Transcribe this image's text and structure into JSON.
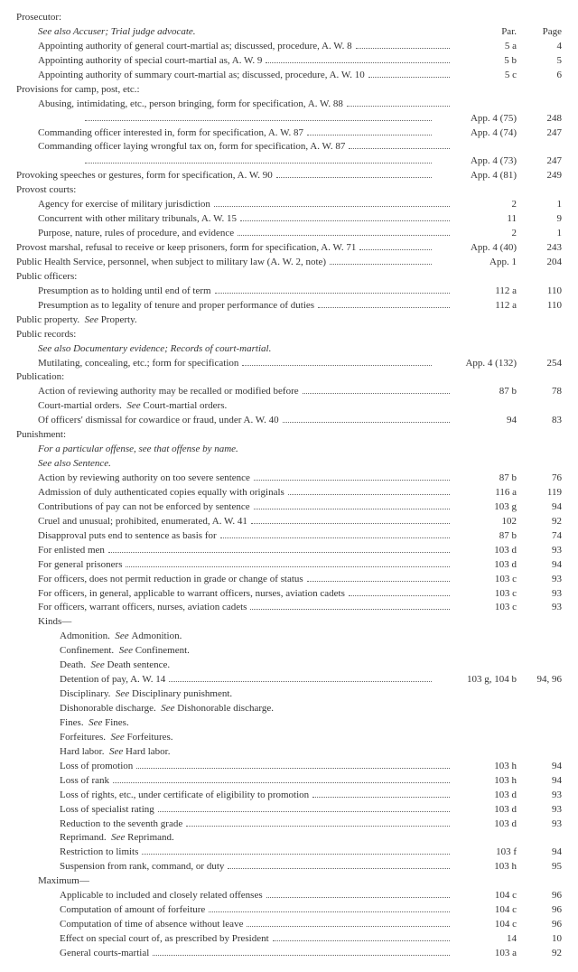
{
  "headers": {
    "par": "Par.",
    "page": "Page"
  },
  "entries": [
    {
      "lvl": 0,
      "text": "Prosecutor:",
      "par": "",
      "page": "",
      "dots": false
    },
    {
      "lvl": 1,
      "text": "See also Accuser; Trial judge advocate.",
      "par": "",
      "page": "",
      "dots": false,
      "italic": true,
      "showHeaders": true
    },
    {
      "lvl": 1,
      "text": "Appointing authority of general court-martial as; discussed, procedure, A. W. 8",
      "par": "5 a",
      "page": "4",
      "dots": true
    },
    {
      "lvl": 1,
      "text": "Appointing authority of special court-martial as, A. W. 9",
      "par": "5 b",
      "page": "5",
      "dots": true
    },
    {
      "lvl": 1,
      "text": "Appointing authority of summary court-martial as; discussed, procedure, A. W. 10",
      "par": "5 c",
      "page": "6",
      "dots": true
    },
    {
      "lvl": 0,
      "text": "Provisions for camp, post, etc.:",
      "par": "",
      "page": "",
      "dots": false
    },
    {
      "lvl": 1,
      "text": "Abusing, intimidating, etc., person bringing, form for specification, A. W. 88",
      "par": "",
      "page": "",
      "dots": true
    },
    {
      "lvl": 3,
      "text": "",
      "prefix": "",
      "par": "App. 4 (75)",
      "page": "248",
      "dots": true,
      "parWide": true
    },
    {
      "lvl": 1,
      "text": "Commanding officer interested in, form for specification, A. W. 87",
      "par": "App. 4 (74)",
      "page": "247",
      "dots": true,
      "parWide": true
    },
    {
      "lvl": 1,
      "text": "Commanding officer laying wrongful tax on, form for specification, A. W. 87",
      "par": "",
      "page": "",
      "dots": true
    },
    {
      "lvl": 3,
      "text": "",
      "par": "App. 4 (73)",
      "page": "247",
      "dots": true,
      "parWide": true
    },
    {
      "lvl": 0,
      "text": "Provoking speeches or gestures, form for specification, A. W. 90",
      "par": "App. 4 (81)",
      "page": "249",
      "dots": true,
      "parWide": true
    },
    {
      "lvl": 0,
      "text": "Provost courts:",
      "par": "",
      "page": "",
      "dots": false
    },
    {
      "lvl": 1,
      "text": "Agency for exercise of military jurisdiction",
      "par": "2",
      "page": "1",
      "dots": true
    },
    {
      "lvl": 1,
      "text": "Concurrent with other military tribunals, A. W. 15",
      "par": "11",
      "page": "9",
      "dots": true
    },
    {
      "lvl": 1,
      "text": "Purpose, nature, rules of procedure, and evidence",
      "par": "2",
      "page": "1",
      "dots": true
    },
    {
      "lvl": 0,
      "text": "Provost marshal, refusal to receive or keep prisoners, form for specification, A. W. 71",
      "par": "App. 4 (40)",
      "page": "243",
      "dots": true,
      "parWide": true,
      "wrap": true
    },
    {
      "lvl": 0,
      "text": "Public Health Service, personnel, when subject to military law (A. W. 2, note)",
      "par": "App. 1",
      "page": "204",
      "dots": true,
      "parWide": true
    },
    {
      "lvl": 0,
      "text": "Public officers:",
      "par": "",
      "page": "",
      "dots": false
    },
    {
      "lvl": 1,
      "text": "Presumption as to holding until end of term",
      "par": "112 a",
      "page": "110",
      "dots": true
    },
    {
      "lvl": 1,
      "text": "Presumption as to legality of tenure and proper performance of duties",
      "par": "112 a",
      "page": "110",
      "dots": true
    },
    {
      "lvl": 0,
      "text": "Public property.  See Property.",
      "par": "",
      "page": "",
      "dots": false,
      "mixedItalic": "see"
    },
    {
      "lvl": 0,
      "text": "Public records:",
      "par": "",
      "page": "",
      "dots": false
    },
    {
      "lvl": 1,
      "text": "See also Documentary evidence; Records of court-martial.",
      "par": "",
      "page": "",
      "dots": false,
      "italic": true
    },
    {
      "lvl": 1,
      "text": "Mutilating, concealing, etc.; form for specification",
      "par": "App. 4 (132)",
      "page": "254",
      "dots": true,
      "parWide": true
    },
    {
      "lvl": 0,
      "text": "Publication:",
      "par": "",
      "page": "",
      "dots": false
    },
    {
      "lvl": 1,
      "text": "Action of reviewing authority may be recalled or modified before",
      "par": "87 b",
      "page": "78",
      "dots": true
    },
    {
      "lvl": 1,
      "text": "Court-martial orders.  See Court-martial orders.",
      "par": "",
      "page": "",
      "dots": false,
      "mixedItalic": "see"
    },
    {
      "lvl": 1,
      "text": "Of officers' dismissal for cowardice or fraud, under A. W. 40",
      "par": "94",
      "page": "83",
      "dots": true
    },
    {
      "lvl": 0,
      "text": "Punishment:",
      "par": "",
      "page": "",
      "dots": false
    },
    {
      "lvl": 1,
      "text": "For a particular offense, see that offense by name.",
      "par": "",
      "page": "",
      "dots": false,
      "italic": true
    },
    {
      "lvl": 1,
      "text": "See also Sentence.",
      "par": "",
      "page": "",
      "dots": false,
      "italic": true
    },
    {
      "lvl": 1,
      "text": "Action by reviewing authority on too severe sentence",
      "par": "87 b",
      "page": "76",
      "dots": true
    },
    {
      "lvl": 1,
      "text": "Admission of duly authenticated copies equally with originals",
      "par": "116 a",
      "page": "119",
      "dots": true
    },
    {
      "lvl": 1,
      "text": "Contributions of pay can not be enforced by sentence",
      "par": "103 g",
      "page": "94",
      "dots": true
    },
    {
      "lvl": 1,
      "text": "Cruel and unusual; prohibited, enumerated, A. W. 41",
      "par": "102",
      "page": "92",
      "dots": true
    },
    {
      "lvl": 1,
      "text": "Disapproval puts end to sentence as basis for",
      "par": "87 b",
      "page": "74",
      "dots": true
    },
    {
      "lvl": 1,
      "text": "For enlisted men",
      "par": "103 d",
      "page": "93",
      "dots": true
    },
    {
      "lvl": 1,
      "text": "For general prisoners",
      "par": "103 d",
      "page": "94",
      "dots": true
    },
    {
      "lvl": 1,
      "text": "For officers, does not permit reduction in grade or change of status",
      "par": "103 c",
      "page": "93",
      "dots": true
    },
    {
      "lvl": 1,
      "text": "For officers, in general, applicable to warrant officers, nurses, aviation cadets",
      "par": "103 c",
      "page": "93",
      "dots": true
    },
    {
      "lvl": 1,
      "text": "For officers, warrant officers, nurses, aviation cadets",
      "par": "103 c",
      "page": "93",
      "dots": true
    },
    {
      "lvl": 1,
      "text": "Kinds—",
      "par": "",
      "page": "",
      "dots": false
    },
    {
      "lvl": 2,
      "text": "Admonition.  See Admonition.",
      "par": "",
      "page": "",
      "dots": false,
      "mixedItalic": "see"
    },
    {
      "lvl": 2,
      "text": "Confinement.  See Confinement.",
      "par": "",
      "page": "",
      "dots": false,
      "mixedItalic": "see"
    },
    {
      "lvl": 2,
      "text": "Death.  See Death sentence.",
      "par": "",
      "page": "",
      "dots": false,
      "mixedItalic": "see"
    },
    {
      "lvl": 2,
      "text": "Detention of pay, A. W. 14",
      "par": "103 g, 104 b",
      "page": "94, 96",
      "dots": true,
      "parWide": true
    },
    {
      "lvl": 2,
      "text": "Disciplinary.  See Disciplinary punishment.",
      "par": "",
      "page": "",
      "dots": false,
      "mixedItalic": "see"
    },
    {
      "lvl": 2,
      "text": "Dishonorable discharge.  See Dishonorable discharge.",
      "par": "",
      "page": "",
      "dots": false,
      "mixedItalic": "see"
    },
    {
      "lvl": 2,
      "text": "Fines.  See Fines.",
      "par": "",
      "page": "",
      "dots": false,
      "mixedItalic": "see"
    },
    {
      "lvl": 2,
      "text": "Forfeitures.  See Forfeitures.",
      "par": "",
      "page": "",
      "dots": false,
      "mixedItalic": "see"
    },
    {
      "lvl": 2,
      "text": "Hard labor.  See Hard labor.",
      "par": "",
      "page": "",
      "dots": false,
      "mixedItalic": "see"
    },
    {
      "lvl": 2,
      "text": "Loss of promotion",
      "par": "103 h",
      "page": "94",
      "dots": true
    },
    {
      "lvl": 2,
      "text": "Loss of rank",
      "par": "103 h",
      "page": "94",
      "dots": true
    },
    {
      "lvl": 2,
      "text": "Loss of rights, etc., under certificate of eligibility to promotion",
      "par": "103 d",
      "page": "93",
      "dots": true
    },
    {
      "lvl": 2,
      "text": "Loss of specialist rating",
      "par": "103 d",
      "page": "93",
      "dots": true
    },
    {
      "lvl": 2,
      "text": "Reduction to the seventh grade",
      "par": "103 d",
      "page": "93",
      "dots": true
    },
    {
      "lvl": 2,
      "text": "Reprimand.  See Reprimand.",
      "par": "",
      "page": "",
      "dots": false,
      "mixedItalic": "see"
    },
    {
      "lvl": 2,
      "text": "Restriction to limits",
      "par": "103 f",
      "page": "94",
      "dots": true
    },
    {
      "lvl": 2,
      "text": "Suspension from rank, command, or duty",
      "par": "103 h",
      "page": "95",
      "dots": true
    },
    {
      "lvl": 1,
      "text": "Maximum—",
      "par": "",
      "page": "",
      "dots": false
    },
    {
      "lvl": 2,
      "text": "Applicable to included and closely related offenses",
      "par": "104 c",
      "page": "96",
      "dots": true
    },
    {
      "lvl": 2,
      "text": "Computation of amount of forfeiture",
      "par": "104 c",
      "page": "96",
      "dots": true
    },
    {
      "lvl": 2,
      "text": "Computation of time of absence without leave",
      "par": "104 c",
      "page": "96",
      "dots": true
    },
    {
      "lvl": 2,
      "text": "Effect on special court of, as prescribed by President",
      "par": "14",
      "page": "10",
      "dots": true
    },
    {
      "lvl": 2,
      "text": "General courts-martial",
      "par": "103 a",
      "page": "92",
      "dots": true
    }
  ]
}
